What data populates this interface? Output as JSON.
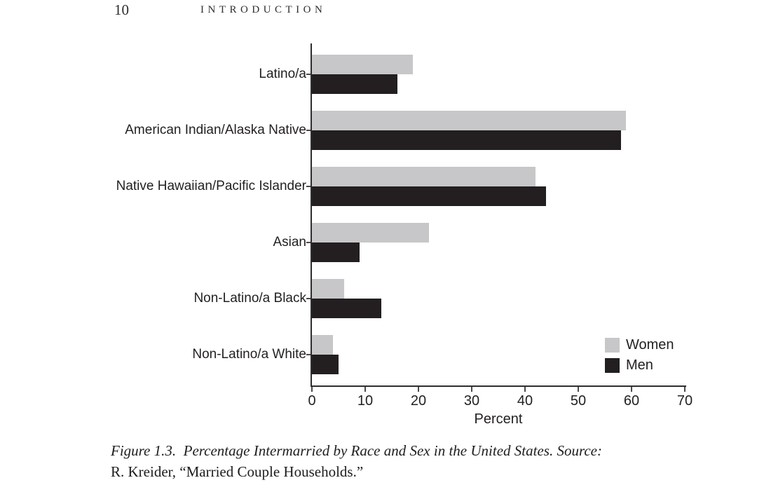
{
  "page": {
    "page_number": "10",
    "running_head": "INTRODUCTION"
  },
  "chart_data": {
    "type": "bar",
    "orientation": "horizontal",
    "categories": [
      "Latino/a",
      "American Indian/Alaska Native",
      "Native Hawaiian/Pacific Islander",
      "Asian",
      "Non-Latino/a Black",
      "Non-Latino/a White"
    ],
    "series": [
      {
        "name": "Women",
        "color": "#c7c7c9",
        "values": [
          19,
          59,
          42,
          22,
          6,
          4
        ]
      },
      {
        "name": "Men",
        "color": "#231f20",
        "values": [
          16,
          58,
          44,
          9,
          13,
          5
        ]
      }
    ],
    "xlabel": "Percent",
    "xlim": [
      0,
      70
    ],
    "xticks": [
      0,
      10,
      20,
      30,
      40,
      50,
      60,
      70
    ],
    "grid": false,
    "legend_position": "bottom-right"
  },
  "caption": {
    "line1": "Figure 1.3.  Percentage Intermarried by Race and Sex in the United States. Source:",
    "line2": "R. Kreider, “Married Couple Households.”"
  }
}
